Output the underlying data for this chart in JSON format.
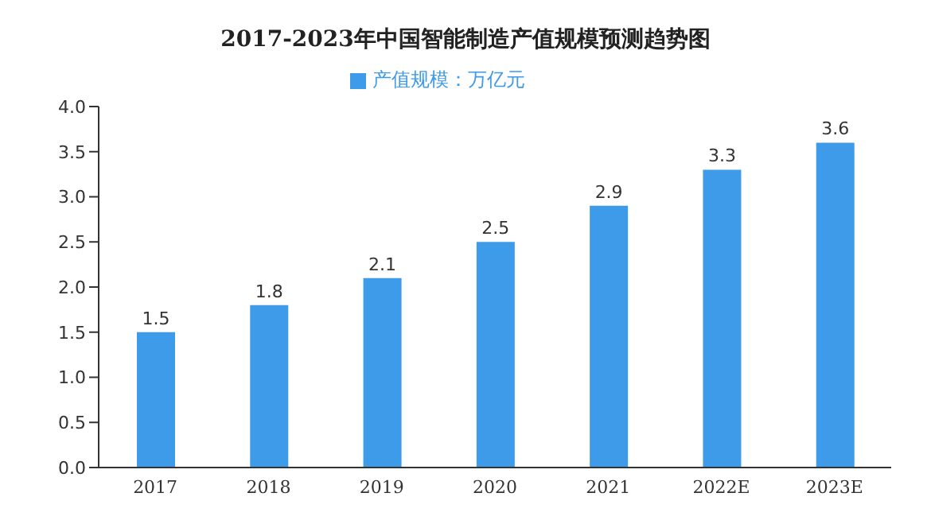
{
  "chart_data": {
    "type": "bar",
    "title": "2017-2023年中国智能制造产值规模预测趋势图",
    "categories": [
      "2017",
      "2018",
      "2019",
      "2020",
      "2021",
      "2022E",
      "2023E"
    ],
    "series": [
      {
        "name": "产值规模：万亿元",
        "color": "#3d9be9",
        "values": [
          1.5,
          1.8,
          2.1,
          2.5,
          2.9,
          3.3,
          3.6
        ]
      }
    ],
    "ylim": [
      0,
      4
    ],
    "yticks": [
      {
        "value": 0,
        "label": "0.0"
      },
      {
        "value": 0.5,
        "label": "0.5"
      },
      {
        "value": 1,
        "label": "1.0"
      },
      {
        "value": 1.5,
        "label": "1.5"
      },
      {
        "value": 2,
        "label": "2.0"
      },
      {
        "value": 2.5,
        "label": "2.5"
      },
      {
        "value": 3,
        "label": "3.0"
      },
      {
        "value": 3.5,
        "label": "3.5"
      },
      {
        "value": 4,
        "label": "4.0"
      }
    ],
    "data_labels": true,
    "legend": "top",
    "grid": false
  }
}
